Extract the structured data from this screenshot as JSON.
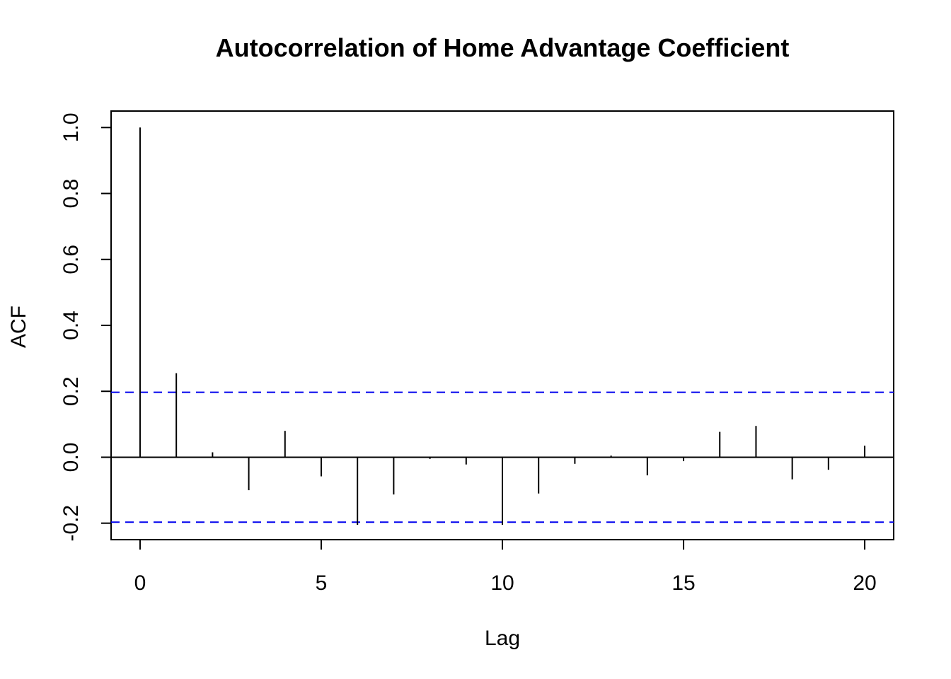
{
  "chart_data": {
    "type": "bar",
    "title": "Autocorrelation of Home Advantage Coefficient",
    "xlabel": "Lag",
    "ylabel": "ACF",
    "x": [
      0,
      1,
      2,
      3,
      4,
      5,
      6,
      7,
      8,
      9,
      10,
      11,
      12,
      13,
      14,
      15,
      16,
      17,
      18,
      19,
      20
    ],
    "values": [
      1.0,
      0.255,
      0.015,
      -0.1,
      0.08,
      -0.058,
      -0.205,
      -0.113,
      -0.005,
      -0.022,
      -0.205,
      -0.11,
      -0.02,
      0.005,
      -0.055,
      -0.012,
      0.077,
      0.095,
      -0.067,
      -0.038,
      0.035
    ],
    "confidence_band": [
      0.197,
      -0.197
    ],
    "band_color": "#0000ee",
    "spike_color": "#000000",
    "xlim": [
      -0.8,
      20.8
    ],
    "ylim": [
      -0.25,
      1.05
    ],
    "xticks": [
      "0",
      "5",
      "10",
      "15",
      "20"
    ],
    "yticks": [
      "-0.2",
      "0.0",
      "0.2",
      "0.4",
      "0.6",
      "0.8",
      "1.0"
    ],
    "grid": false,
    "legend": "none"
  }
}
